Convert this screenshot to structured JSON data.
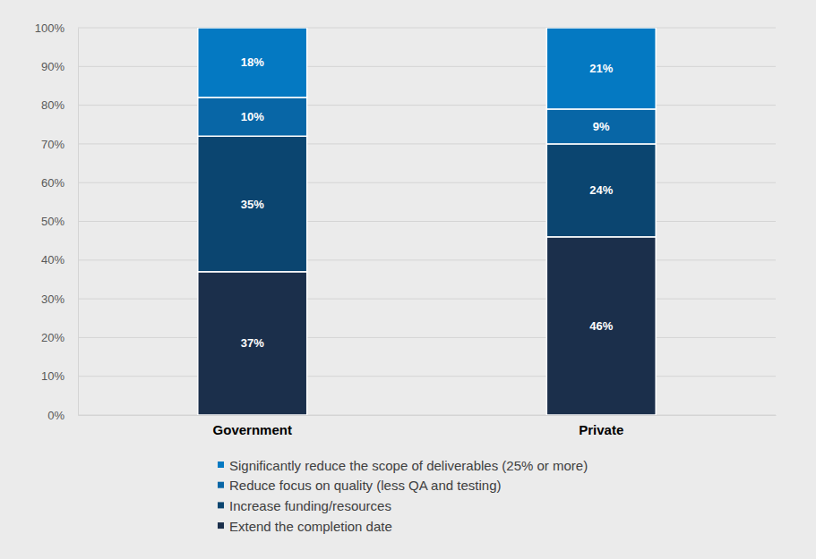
{
  "chart_data": {
    "type": "bar",
    "stacked": true,
    "data_labels": true,
    "grid": true,
    "legend": "bottom",
    "categories": [
      "Government",
      "Private"
    ],
    "ylim": [
      0,
      100
    ],
    "yticks": [
      {
        "value": 0,
        "label": "0%"
      },
      {
        "value": 10,
        "label": "10%"
      },
      {
        "value": 20,
        "label": "20%"
      },
      {
        "value": 30,
        "label": "30%"
      },
      {
        "value": 40,
        "label": "40%"
      },
      {
        "value": 50,
        "label": "50%"
      },
      {
        "value": 60,
        "label": "60%"
      },
      {
        "value": 70,
        "label": "70%"
      },
      {
        "value": 80,
        "label": "80%"
      },
      {
        "value": 90,
        "label": "90%"
      },
      {
        "value": 100,
        "label": "100%"
      }
    ],
    "series": [
      {
        "name": "Extend the completion date",
        "color": "#1b2f4b",
        "values": [
          37,
          46
        ],
        "value_labels": [
          "37%",
          "46%"
        ]
      },
      {
        "name": "Increase funding/resources",
        "color": "#0b4570",
        "values": [
          35,
          24
        ],
        "value_labels": [
          "35%",
          "24%"
        ]
      },
      {
        "name": "Reduce focus on quality (less QA and testing)",
        "color": "#0866a6",
        "values": [
          10,
          9
        ],
        "value_labels": [
          "10%",
          "9%"
        ]
      },
      {
        "name": "Significantly reduce the scope of deliverables (25% or more)",
        "color": "#0479c2",
        "values": [
          18,
          21
        ],
        "value_labels": [
          "18%",
          "21%"
        ]
      }
    ]
  }
}
